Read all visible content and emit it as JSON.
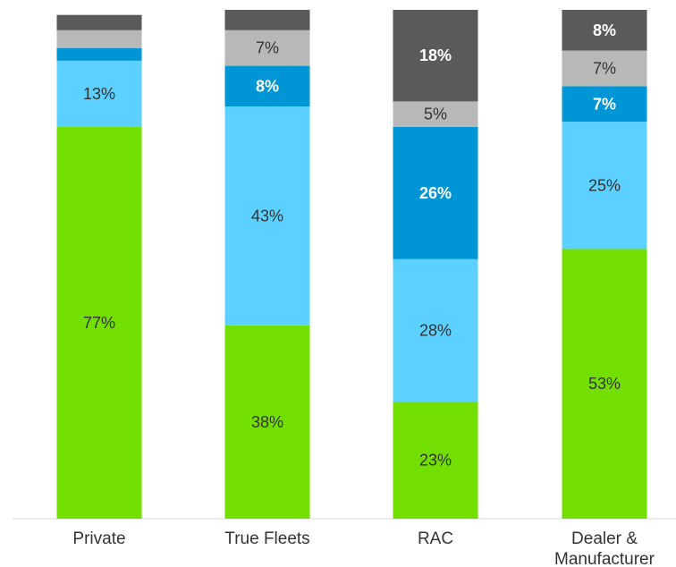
{
  "chart_data": {
    "type": "bar",
    "stacked": true,
    "categories": [
      "Private",
      "True Fleets",
      "RAC",
      "Dealer & Manufacturer"
    ],
    "category_lines": [
      [
        "Private"
      ],
      [
        "True Fleets"
      ],
      [
        "RAC"
      ],
      [
        "Dealer &",
        "Manufacturer"
      ]
    ],
    "ylim": [
      0,
      100
    ],
    "grid": false,
    "series": [
      {
        "color": "#73df00",
        "values": [
          77,
          38,
          23,
          53
        ],
        "labels": [
          "77%",
          "38%",
          "23%",
          "53%"
        ],
        "label_color": "#333333"
      },
      {
        "color": "#5cd0ff",
        "values": [
          13,
          43,
          28,
          25
        ],
        "labels": [
          "13%",
          "43%",
          "28%",
          "25%"
        ],
        "label_color": "#333333"
      },
      {
        "color": "#0096d6",
        "values": [
          2.5,
          8,
          26,
          7
        ],
        "labels": [
          "",
          "8%",
          "26%",
          "7%"
        ],
        "label_color": "#ffffff"
      },
      {
        "color": "#b8b8b8",
        "values": [
          3.5,
          7,
          5,
          7
        ],
        "labels": [
          "",
          "7%",
          "5%",
          "7%"
        ],
        "label_color": "#333333"
      },
      {
        "color": "#5a5a5a",
        "values": [
          3,
          4,
          18,
          8
        ],
        "labels": [
          "",
          "",
          "18%",
          "8%"
        ],
        "label_color": "#ffffff"
      }
    ]
  }
}
